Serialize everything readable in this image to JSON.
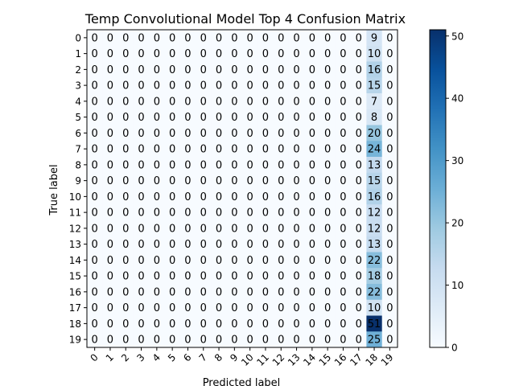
{
  "chart_data": {
    "type": "heatmap",
    "title": "Temp Convolutional Model Top 4 Confusion Matrix",
    "xlabel": "Predicted label",
    "ylabel": "True label",
    "x_ticks": [
      "0",
      "1",
      "2",
      "3",
      "4",
      "5",
      "6",
      "7",
      "8",
      "9",
      "10",
      "11",
      "12",
      "13",
      "14",
      "15",
      "16",
      "17",
      "18",
      "19"
    ],
    "y_ticks": [
      "0",
      "1",
      "2",
      "3",
      "4",
      "5",
      "6",
      "7",
      "8",
      "9",
      "10",
      "11",
      "12",
      "13",
      "14",
      "15",
      "16",
      "17",
      "18",
      "19"
    ],
    "predicted_column": 18,
    "column_18_values": [
      9,
      10,
      16,
      15,
      7,
      8,
      20,
      24,
      13,
      15,
      16,
      12,
      12,
      13,
      22,
      18,
      22,
      10,
      51,
      25
    ],
    "other_cell_value": 0,
    "colorbar": {
      "min": 0,
      "max": 51,
      "ticks": [
        0,
        10,
        20,
        30,
        40,
        50
      ],
      "colormap": "Blues"
    }
  }
}
